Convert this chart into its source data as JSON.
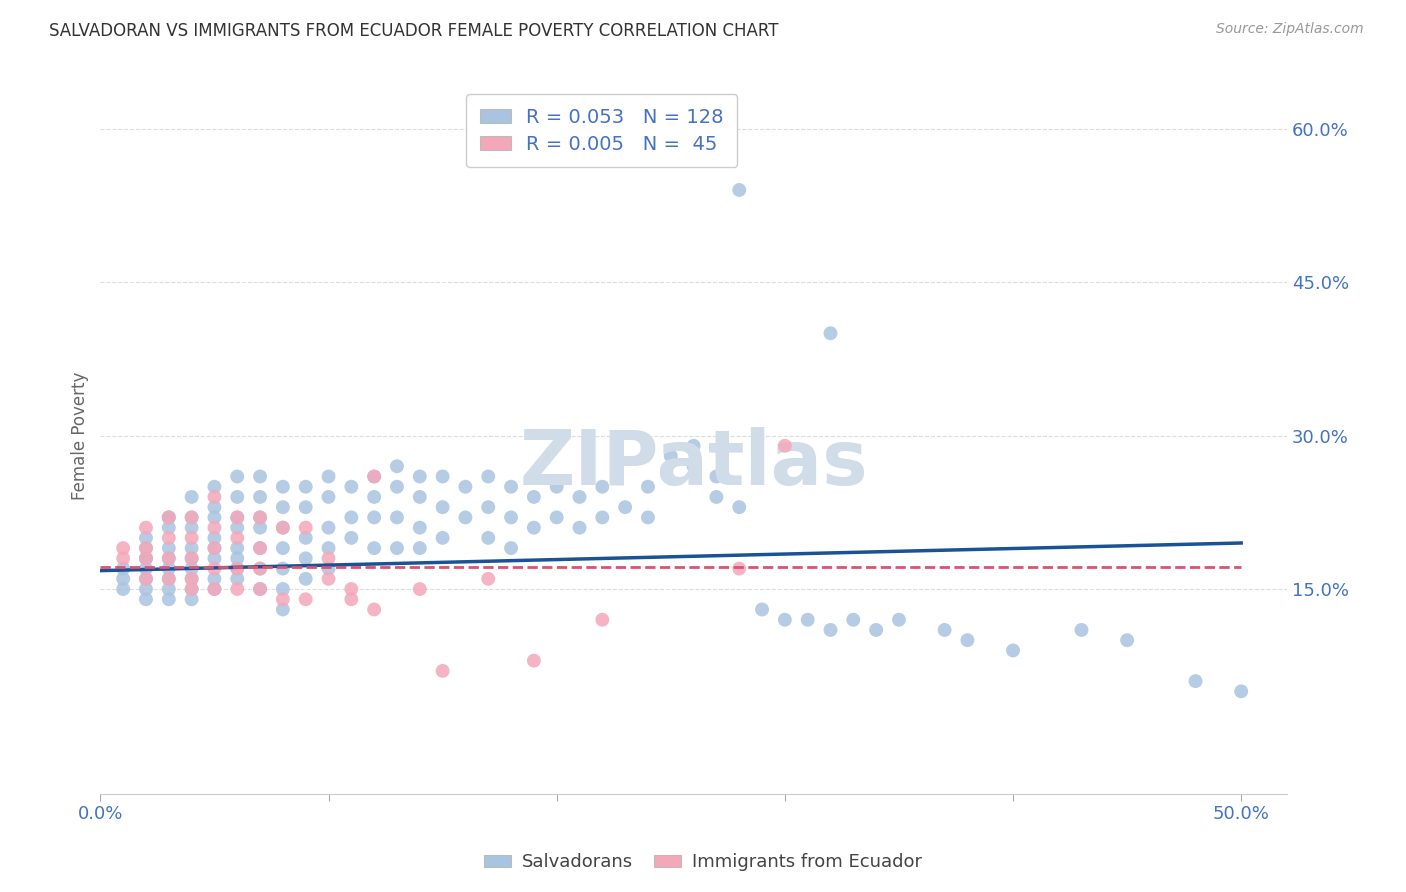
{
  "title": "SALVADORAN VS IMMIGRANTS FROM ECUADOR FEMALE POVERTY CORRELATION CHART",
  "source": "Source: ZipAtlas.com",
  "ylabel": "Female Poverty",
  "y_ticks": [
    0.15,
    0.3,
    0.45,
    0.6
  ],
  "y_tick_labels": [
    "15.0%",
    "30.0%",
    "45.0%",
    "60.0%"
  ],
  "x_ticks": [
    0.0,
    0.1,
    0.2,
    0.3,
    0.4,
    0.5
  ],
  "x_tick_labels": [
    "0.0%",
    "",
    "",
    "",
    "",
    "50.0%"
  ],
  "xlim": [
    0.0,
    0.52
  ],
  "ylim": [
    -0.05,
    0.65
  ],
  "salvadoran_R": 0.053,
  "salvadoran_N": 128,
  "ecuador_R": 0.005,
  "ecuador_N": 45,
  "salvadoran_color": "#a8c4e0",
  "ecuador_color": "#f4a7b9",
  "salvadoran_line_color": "#1a5296",
  "ecuador_line_color": "#e05070",
  "background_color": "#ffffff",
  "grid_color": "#dddddd",
  "title_color": "#333333",
  "axis_label_color": "#4472c4",
  "watermark_text": "ZIPatlas",
  "watermark_color": "#d0dce8",
  "legend_edge_color": "#cccccc",
  "bottom_legend_labels": [
    "Salvadorans",
    "Immigrants from Ecuador"
  ],
  "sal_line_y0": 0.168,
  "sal_line_y1": 0.195,
  "ecu_line_y0": 0.172,
  "ecu_line_y1": 0.172,
  "sal_x": [
    0.01,
    0.01,
    0.01,
    0.02,
    0.02,
    0.02,
    0.02,
    0.02,
    0.02,
    0.02,
    0.02,
    0.03,
    0.03,
    0.03,
    0.03,
    0.03,
    0.03,
    0.03,
    0.03,
    0.03,
    0.04,
    0.04,
    0.04,
    0.04,
    0.04,
    0.04,
    0.04,
    0.04,
    0.04,
    0.05,
    0.05,
    0.05,
    0.05,
    0.05,
    0.05,
    0.05,
    0.05,
    0.06,
    0.06,
    0.06,
    0.06,
    0.06,
    0.06,
    0.06,
    0.06,
    0.07,
    0.07,
    0.07,
    0.07,
    0.07,
    0.07,
    0.07,
    0.08,
    0.08,
    0.08,
    0.08,
    0.08,
    0.08,
    0.08,
    0.09,
    0.09,
    0.09,
    0.09,
    0.09,
    0.1,
    0.1,
    0.1,
    0.1,
    0.1,
    0.11,
    0.11,
    0.11,
    0.12,
    0.12,
    0.12,
    0.12,
    0.13,
    0.13,
    0.13,
    0.13,
    0.14,
    0.14,
    0.14,
    0.14,
    0.15,
    0.15,
    0.15,
    0.16,
    0.16,
    0.17,
    0.17,
    0.17,
    0.18,
    0.18,
    0.18,
    0.19,
    0.19,
    0.2,
    0.2,
    0.21,
    0.21,
    0.22,
    0.22,
    0.23,
    0.24,
    0.24,
    0.25,
    0.26,
    0.26,
    0.27,
    0.27,
    0.28,
    0.29,
    0.3,
    0.31,
    0.32,
    0.33,
    0.34,
    0.35,
    0.37,
    0.38,
    0.4,
    0.43,
    0.45,
    0.48,
    0.5,
    0.28,
    0.32
  ],
  "sal_y": [
    0.17,
    0.16,
    0.15,
    0.18,
    0.17,
    0.16,
    0.15,
    0.14,
    0.2,
    0.19,
    0.18,
    0.22,
    0.21,
    0.19,
    0.18,
    0.17,
    0.16,
    0.15,
    0.14,
    0.22,
    0.24,
    0.22,
    0.21,
    0.19,
    0.18,
    0.17,
    0.16,
    0.15,
    0.14,
    0.25,
    0.23,
    0.22,
    0.2,
    0.19,
    0.18,
    0.16,
    0.15,
    0.26,
    0.24,
    0.22,
    0.21,
    0.19,
    0.18,
    0.17,
    0.16,
    0.26,
    0.24,
    0.22,
    0.21,
    0.19,
    0.17,
    0.15,
    0.25,
    0.23,
    0.21,
    0.19,
    0.17,
    0.15,
    0.13,
    0.25,
    0.23,
    0.2,
    0.18,
    0.16,
    0.26,
    0.24,
    0.21,
    0.19,
    0.17,
    0.25,
    0.22,
    0.2,
    0.26,
    0.24,
    0.22,
    0.19,
    0.27,
    0.25,
    0.22,
    0.19,
    0.26,
    0.24,
    0.21,
    0.19,
    0.26,
    0.23,
    0.2,
    0.25,
    0.22,
    0.26,
    0.23,
    0.2,
    0.25,
    0.22,
    0.19,
    0.24,
    0.21,
    0.25,
    0.22,
    0.24,
    0.21,
    0.25,
    0.22,
    0.23,
    0.25,
    0.22,
    0.28,
    0.29,
    0.27,
    0.26,
    0.24,
    0.23,
    0.13,
    0.12,
    0.12,
    0.11,
    0.12,
    0.11,
    0.12,
    0.11,
    0.1,
    0.09,
    0.11,
    0.1,
    0.06,
    0.05,
    0.54,
    0.4
  ],
  "ecu_x": [
    0.01,
    0.01,
    0.02,
    0.02,
    0.02,
    0.02,
    0.03,
    0.03,
    0.03,
    0.03,
    0.04,
    0.04,
    0.04,
    0.04,
    0.04,
    0.05,
    0.05,
    0.05,
    0.05,
    0.05,
    0.06,
    0.06,
    0.06,
    0.06,
    0.07,
    0.07,
    0.07,
    0.07,
    0.08,
    0.08,
    0.09,
    0.09,
    0.1,
    0.1,
    0.11,
    0.11,
    0.12,
    0.12,
    0.14,
    0.15,
    0.17,
    0.19,
    0.22,
    0.28,
    0.3
  ],
  "ecu_y": [
    0.19,
    0.18,
    0.21,
    0.19,
    0.18,
    0.16,
    0.22,
    0.2,
    0.18,
    0.16,
    0.22,
    0.2,
    0.18,
    0.16,
    0.15,
    0.24,
    0.21,
    0.19,
    0.17,
    0.15,
    0.22,
    0.2,
    0.17,
    0.15,
    0.22,
    0.19,
    0.17,
    0.15,
    0.21,
    0.14,
    0.21,
    0.14,
    0.18,
    0.16,
    0.15,
    0.14,
    0.26,
    0.13,
    0.15,
    0.07,
    0.16,
    0.08,
    0.12,
    0.17,
    0.29
  ]
}
